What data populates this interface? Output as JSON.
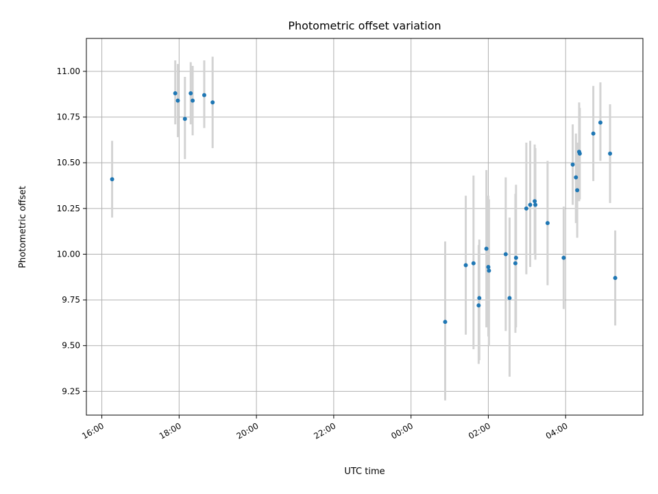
{
  "chart_data": {
    "type": "scatter",
    "title": "Photometric offset variation",
    "xlabel": "UTC time",
    "ylabel": "Photometric offset",
    "x_axis_type": "time",
    "xlim_hours": [
      15.6,
      30.0
    ],
    "ylim": [
      9.12,
      11.18
    ],
    "grid": true,
    "legend": "none",
    "x_ticks": [
      {
        "label": "16:00",
        "hours": 16
      },
      {
        "label": "18:00",
        "hours": 18
      },
      {
        "label": "20:00",
        "hours": 20
      },
      {
        "label": "22:00",
        "hours": 22
      },
      {
        "label": "00:00",
        "hours": 24
      },
      {
        "label": "02:00",
        "hours": 26
      },
      {
        "label": "04:00",
        "hours": 28
      }
    ],
    "y_ticks": [
      {
        "label": "9.25",
        "value": 9.25
      },
      {
        "label": "9.50",
        "value": 9.5
      },
      {
        "label": "9.75",
        "value": 9.75
      },
      {
        "label": "10.00",
        "value": 10.0
      },
      {
        "label": "10.25",
        "value": 10.25
      },
      {
        "label": "10.50",
        "value": 10.5
      },
      {
        "label": "10.75",
        "value": 10.75
      },
      {
        "label": "11.00",
        "value": 11.0
      }
    ],
    "points": [
      {
        "time": "16:16",
        "y": 10.41,
        "lo": 10.2,
        "hi": 10.62
      },
      {
        "time": "17:54",
        "y": 10.88,
        "lo": 10.71,
        "hi": 11.06
      },
      {
        "time": "17:58",
        "y": 10.84,
        "lo": 10.64,
        "hi": 11.04
      },
      {
        "time": "18:09",
        "y": 10.74,
        "lo": 10.52,
        "hi": 10.97
      },
      {
        "time": "18:18",
        "y": 10.88,
        "lo": 10.71,
        "hi": 11.05
      },
      {
        "time": "18:21",
        "y": 10.84,
        "lo": 10.65,
        "hi": 11.03
      },
      {
        "time": "18:39",
        "y": 10.87,
        "lo": 10.69,
        "hi": 11.06
      },
      {
        "time": "18:52",
        "y": 10.83,
        "lo": 10.58,
        "hi": 11.08
      },
      {
        "time": "00:53",
        "y": 9.63,
        "lo": 9.2,
        "hi": 10.07
      },
      {
        "time": "01:25",
        "y": 9.94,
        "lo": 9.56,
        "hi": 10.32
      },
      {
        "time": "01:37",
        "y": 9.95,
        "lo": 9.48,
        "hi": 10.43
      },
      {
        "time": "01:45",
        "y": 9.72,
        "lo": 9.4,
        "hi": 10.05
      },
      {
        "time": "01:46",
        "y": 9.76,
        "lo": 9.42,
        "hi": 10.08
      },
      {
        "time": "01:57",
        "y": 10.03,
        "lo": 9.6,
        "hi": 10.46
      },
      {
        "time": "02:00",
        "y": 9.93,
        "lo": 9.55,
        "hi": 10.32
      },
      {
        "time": "02:01",
        "y": 9.91,
        "lo": 9.5,
        "hi": 10.3
      },
      {
        "time": "02:27",
        "y": 10.0,
        "lo": 9.58,
        "hi": 10.42
      },
      {
        "time": "02:33",
        "y": 9.76,
        "lo": 9.33,
        "hi": 10.2
      },
      {
        "time": "02:42",
        "y": 9.95,
        "lo": 9.57,
        "hi": 10.33
      },
      {
        "time": "02:43",
        "y": 9.98,
        "lo": 9.6,
        "hi": 10.38
      },
      {
        "time": "02:59",
        "y": 10.25,
        "lo": 9.89,
        "hi": 10.61
      },
      {
        "time": "03:05",
        "y": 10.27,
        "lo": 9.93,
        "hi": 10.62
      },
      {
        "time": "03:12",
        "y": 10.29,
        "lo": 10.0,
        "hi": 10.6
      },
      {
        "time": "03:13",
        "y": 10.27,
        "lo": 9.97,
        "hi": 10.58
      },
      {
        "time": "03:32",
        "y": 10.17,
        "lo": 9.83,
        "hi": 10.51
      },
      {
        "time": "03:57",
        "y": 9.98,
        "lo": 9.7,
        "hi": 10.26
      },
      {
        "time": "04:11",
        "y": 10.49,
        "lo": 10.27,
        "hi": 10.71
      },
      {
        "time": "04:16",
        "y": 10.42,
        "lo": 10.17,
        "hi": 10.66
      },
      {
        "time": "04:18",
        "y": 10.35,
        "lo": 10.09,
        "hi": 10.61
      },
      {
        "time": "04:21",
        "y": 10.56,
        "lo": 10.29,
        "hi": 10.83
      },
      {
        "time": "04:22",
        "y": 10.55,
        "lo": 10.3,
        "hi": 10.8
      },
      {
        "time": "04:43",
        "y": 10.66,
        "lo": 10.4,
        "hi": 10.92
      },
      {
        "time": "04:54",
        "y": 10.72,
        "lo": 10.51,
        "hi": 10.94
      },
      {
        "time": "05:09",
        "y": 10.55,
        "lo": 10.28,
        "hi": 10.82
      },
      {
        "time": "05:17",
        "y": 9.87,
        "lo": 9.61,
        "hi": 10.13
      }
    ],
    "colors": {
      "point": "#1f77b4",
      "errorbar": "#d3d3d3",
      "grid": "#b0b0b0"
    }
  }
}
